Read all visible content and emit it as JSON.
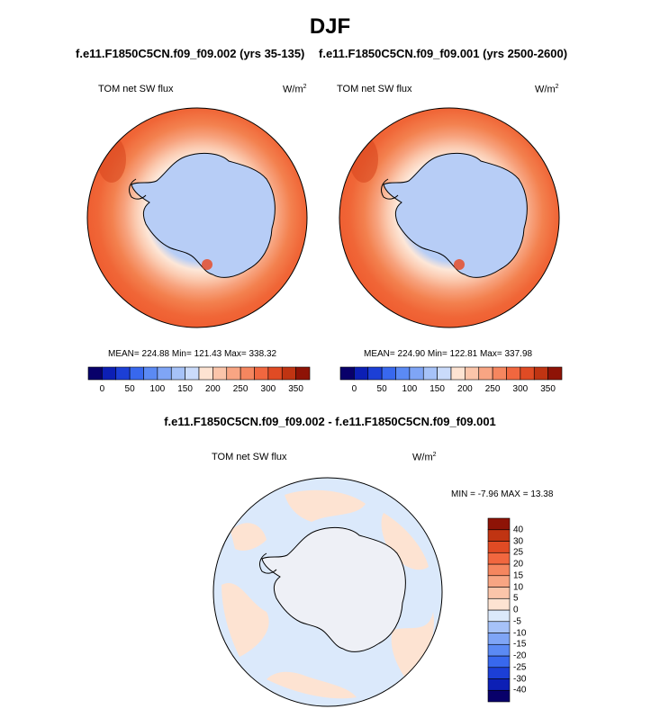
{
  "title": "DJF",
  "panel_left": {
    "case": "f.e11.F1850C5CN.f09_f09.002 (yrs 35-135)",
    "variable": "TOM net SW flux",
    "units": "W/m",
    "units_exp": "2",
    "stats": "MEAN= 224.88  Min= 121.43  Max= 338.32"
  },
  "panel_right": {
    "case": "f.e11.F1850C5CN.f09_f09.001 (yrs 2500-2600)",
    "variable": "TOM net SW flux",
    "units": "W/m",
    "units_exp": "2",
    "stats": "MEAN= 224.90  Min= 122.81  Max= 337.98"
  },
  "panel_diff": {
    "title": "f.e11.F1850C5CN.f09_f09.002 - f.e11.F1850C5CN.f09_f09.001",
    "variable": "TOM net SW flux",
    "units": "W/m",
    "units_exp": "2",
    "stats": "MIN =  -7.96 MAX =  13.38"
  },
  "colorbar_abs": {
    "colors": [
      "#08006a",
      "#0c1fb5",
      "#1c3fd6",
      "#3868ee",
      "#5b8af4",
      "#7fa5f6",
      "#a6c2f8",
      "#cadbfb",
      "#fde3d2",
      "#fbc5aa",
      "#f8a583",
      "#f5865f",
      "#f1673f",
      "#e04b24",
      "#c03412",
      "#8e1306"
    ],
    "tick_labels": [
      "0",
      "50",
      "100",
      "150",
      "200",
      "250",
      "300",
      "350"
    ]
  },
  "colorbar_diff": {
    "colors": [
      "#08006a",
      "#0c1fb5",
      "#1c3fd6",
      "#3868ee",
      "#5b8af4",
      "#7fa5f6",
      "#a6c2f8",
      "#dbe9fb",
      "#fde3d2",
      "#fbc5aa",
      "#f8a583",
      "#f5865f",
      "#f1673f",
      "#e04b24",
      "#c03412",
      "#8e1306"
    ],
    "tick_labels": [
      "40",
      "30",
      "25",
      "20",
      "15",
      "10",
      "5",
      "0",
      "-5",
      "-10",
      "-15",
      "-20",
      "-25",
      "-30",
      "-40"
    ]
  }
}
